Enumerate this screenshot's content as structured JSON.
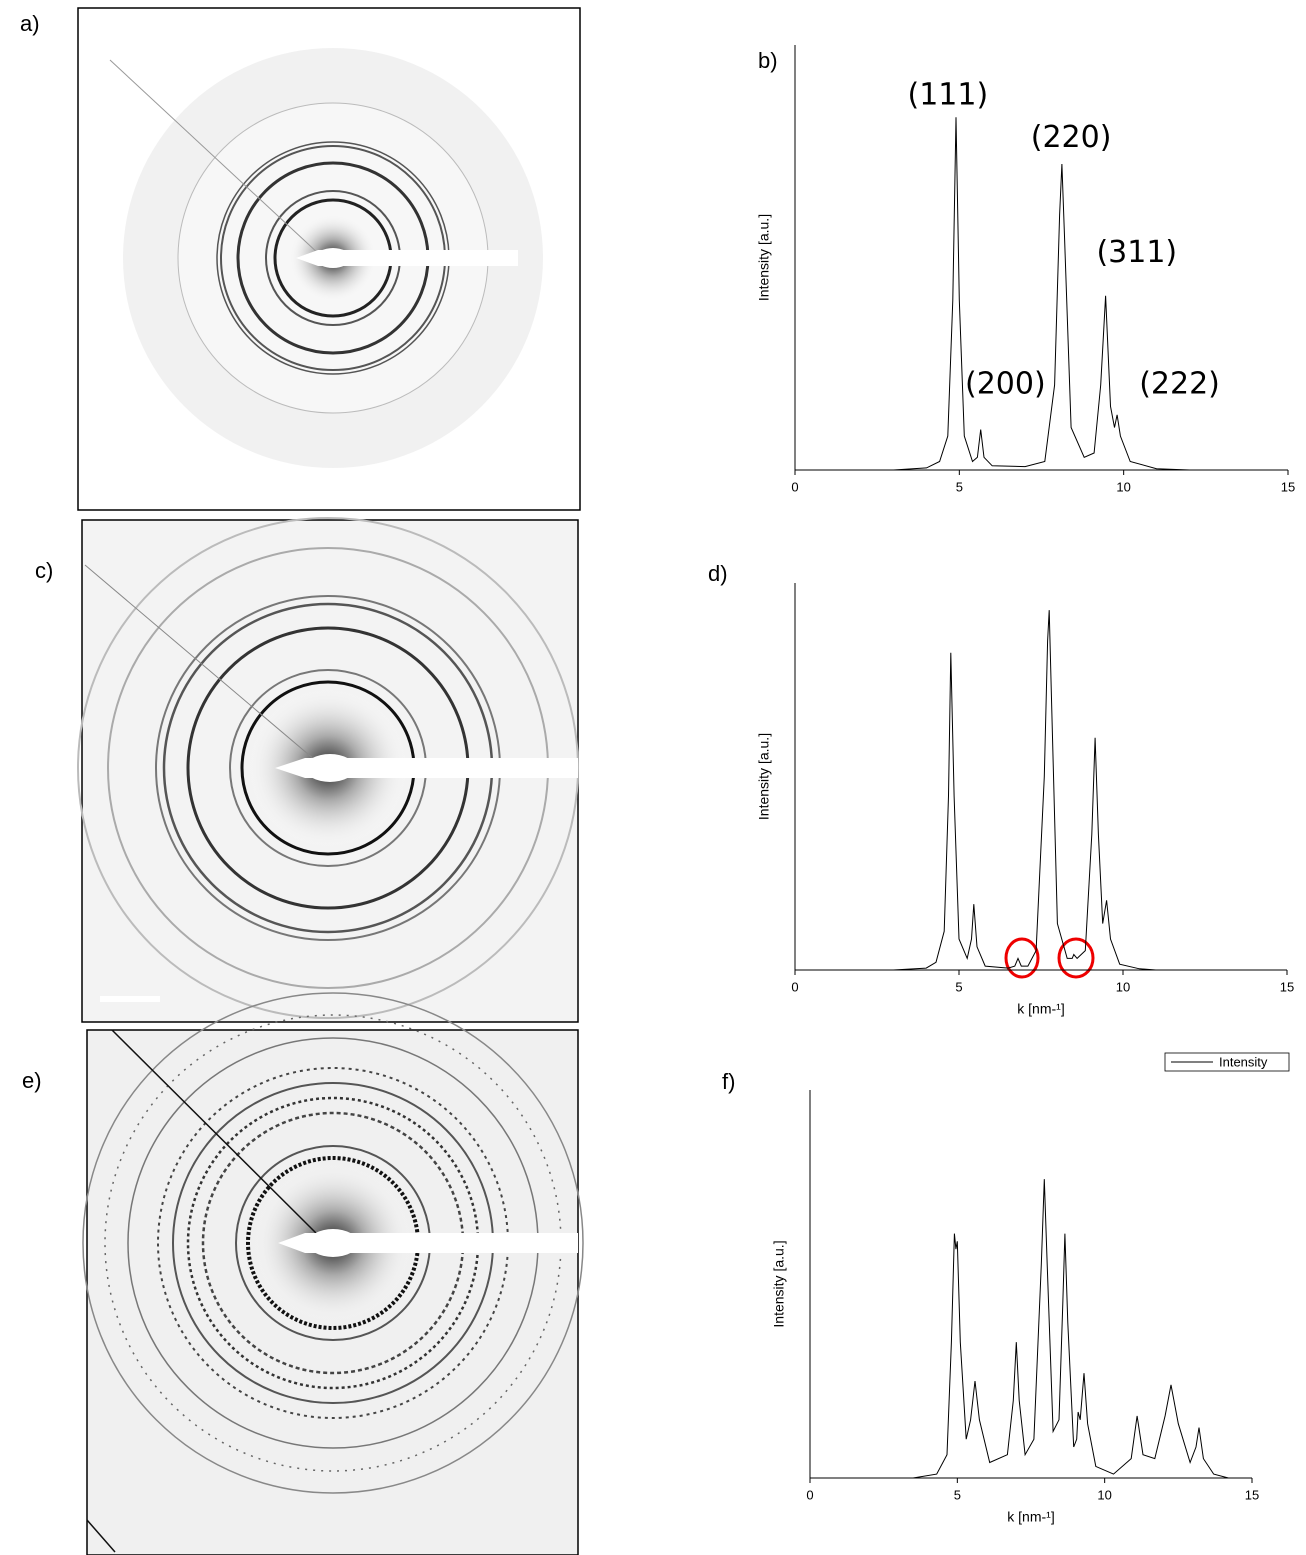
{
  "images": [
    {
      "label": "a)"
    },
    {
      "label": "c)"
    },
    {
      "label": "e)"
    }
  ],
  "chart_data": [
    {
      "type": "line",
      "panel_label": "b)",
      "ylabel": "Intensity [a.u.]",
      "xlim": [
        0,
        15
      ],
      "ylim": [
        0,
        100
      ],
      "xticks": [
        0,
        5,
        10,
        15
      ],
      "x": [
        0,
        3,
        4,
        4.4,
        4.65,
        4.8,
        4.9,
        5.0,
        5.15,
        5.4,
        5.55,
        5.65,
        5.75,
        6,
        7,
        7.6,
        7.9,
        8.05,
        8.12,
        8.2,
        8.4,
        8.8,
        9.1,
        9.3,
        9.45,
        9.6,
        9.72,
        9.8,
        9.9,
        10.2,
        11,
        12,
        15
      ],
      "series": [
        {
          "color": "#000000",
          "values": [
            0,
            0,
            0.5,
            2,
            8,
            40,
            83,
            40,
            8,
            2,
            3,
            9.5,
            3,
            1,
            0.8,
            2,
            20,
            60,
            72,
            55,
            10,
            3,
            4,
            20,
            41,
            15,
            10,
            13,
            8,
            2,
            0.3,
            0,
            0
          ]
        }
      ],
      "annotations": [
        {
          "text": "(111)",
          "x": 4.65,
          "y": 88
        },
        {
          "text": "(200)",
          "x": 6.4,
          "y": 20
        },
        {
          "text": "(220)",
          "x": 8.4,
          "y": 78
        },
        {
          "text": "(311)",
          "x": 10.4,
          "y": 51
        },
        {
          "text": "(222)",
          "x": 11.7,
          "y": 20
        }
      ]
    },
    {
      "type": "line",
      "panel_label": "d)",
      "ylabel": "Intensity [a.u.]",
      "xlabel": "k [nm-¹]",
      "xlim": [
        0,
        15
      ],
      "ylim": [
        0,
        100
      ],
      "xticks": [
        0,
        5,
        10,
        15
      ],
      "x": [
        0,
        3,
        4,
        4.3,
        4.55,
        4.68,
        4.75,
        4.85,
        5.0,
        5.25,
        5.38,
        5.45,
        5.55,
        5.8,
        6.5,
        6.7,
        6.8,
        6.9,
        7.1,
        7.35,
        7.6,
        7.7,
        7.75,
        7.82,
        8.0,
        8.3,
        8.45,
        8.5,
        8.6,
        8.85,
        9.05,
        9.15,
        9.25,
        9.38,
        9.5,
        9.62,
        9.9,
        10.5,
        11,
        15
      ],
      "series": [
        {
          "color": "#000000",
          "values": [
            0,
            0,
            0.5,
            2,
            10,
            45,
            82,
            45,
            8,
            3,
            8,
            17,
            6,
            1,
            0.5,
            1,
            3,
            1,
            1,
            5,
            50,
            85,
            93,
            70,
            12,
            3,
            3,
            4,
            3,
            5,
            35,
            60,
            35,
            12,
            18,
            8,
            1.5,
            0.3,
            0,
            0
          ]
        }
      ]
    },
    {
      "type": "line",
      "panel_label": "f)",
      "ylabel": "Intensity [a.u.]",
      "xlabel": "k [nm-¹]",
      "xlim": [
        0,
        15
      ],
      "ylim": [
        0,
        100
      ],
      "xticks": [
        0,
        5,
        10,
        15
      ],
      "legend": "upper right",
      "x": [
        0,
        3.5,
        4.3,
        4.65,
        4.8,
        4.9,
        4.95,
        5.0,
        5.1,
        5.3,
        5.45,
        5.6,
        5.75,
        6.1,
        6.7,
        6.9,
        7.0,
        7.1,
        7.3,
        7.6,
        7.85,
        7.95,
        8.05,
        8.25,
        8.45,
        8.58,
        8.65,
        8.75,
        8.95,
        9.05,
        9.1,
        9.17,
        9.3,
        9.42,
        9.7,
        10.3,
        10.9,
        11.1,
        11.3,
        11.7,
        12.05,
        12.25,
        12.5,
        12.9,
        13.1,
        13.2,
        13.35,
        13.7,
        14.2
      ],
      "series": [
        {
          "name": "Intensity",
          "color": "#000000",
          "values": [
            0,
            0,
            1,
            6,
            35,
            63,
            59,
            61,
            35,
            10,
            15,
            25,
            15,
            4,
            6,
            20,
            35,
            20,
            6,
            10,
            55,
            77,
            55,
            12,
            15,
            45,
            63,
            40,
            8,
            10,
            17,
            15,
            27,
            14,
            3,
            1,
            5,
            16,
            6,
            5,
            16,
            24,
            14,
            4,
            8,
            13,
            5,
            1,
            0
          ]
        }
      ]
    }
  ]
}
